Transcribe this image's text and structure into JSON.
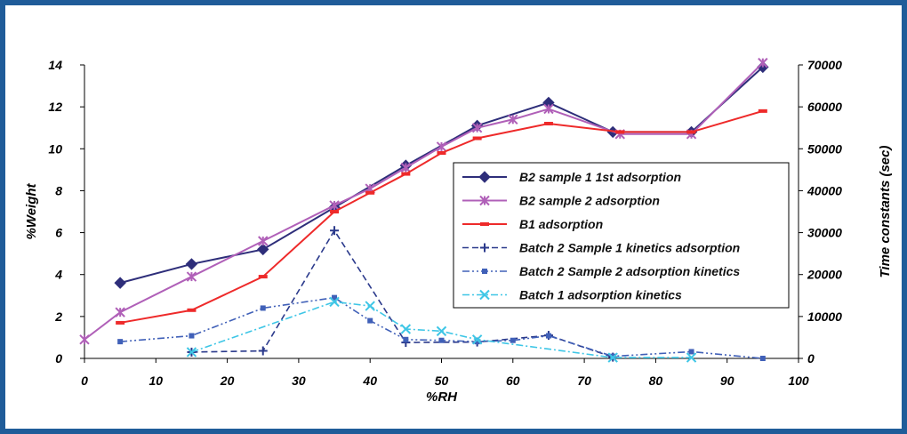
{
  "chart_data": {
    "type": "line",
    "xlabel": "%RH",
    "ylabel": "%Weight",
    "y2label": "Time constants (sec)",
    "xlim": [
      0,
      100
    ],
    "ylim": [
      0,
      14
    ],
    "y2lim": [
      0,
      70000
    ],
    "x_ticks": [
      "0",
      "10",
      "20",
      "30",
      "40",
      "50",
      "60",
      "70",
      "80",
      "90",
      "100"
    ],
    "y_ticks": [
      "0",
      "2",
      "4",
      "6",
      "8",
      "10",
      "12",
      "14"
    ],
    "y2_ticks": [
      "0",
      "10000",
      "20000",
      "30000",
      "40000",
      "50000",
      "60000",
      "70000"
    ],
    "grid": false,
    "legend_position": "center-right",
    "series": [
      {
        "name": "B2 sample 1 1st adsorption",
        "axis": "left",
        "color": "#2e2e7a",
        "dash": "solid",
        "marker": "diamond",
        "x": [
          5,
          15,
          25,
          35,
          45,
          55,
          65,
          74,
          85,
          95
        ],
        "y": [
          3.6,
          4.5,
          5.2,
          7.2,
          9.2,
          11.1,
          12.2,
          10.8,
          10.8,
          13.9
        ]
      },
      {
        "name": "B2 sample 2 adsorption",
        "axis": "left",
        "color": "#b060b8",
        "dash": "solid",
        "marker": "star",
        "x": [
          0,
          5,
          15,
          25,
          35,
          40,
          45,
          50,
          55,
          60,
          65,
          75,
          85,
          95
        ],
        "y": [
          0.9,
          2.2,
          3.9,
          5.6,
          7.3,
          8.1,
          9.1,
          10.1,
          11.0,
          11.4,
          11.9,
          10.7,
          10.7,
          14.1
        ]
      },
      {
        "name": "B1 adsorption",
        "axis": "left",
        "color": "#ee2a2a",
        "dash": "solid",
        "marker": "dash",
        "x": [
          5,
          15,
          25,
          35,
          40,
          45,
          50,
          55,
          65,
          75,
          85,
          95
        ],
        "y": [
          1.7,
          2.3,
          3.9,
          7.0,
          7.9,
          8.8,
          9.8,
          10.5,
          11.2,
          10.8,
          10.8,
          11.8
        ]
      },
      {
        "name": "Batch 2 Sample 1 kinetics adsorption",
        "axis": "right",
        "color": "#2b3a8c",
        "dash": "dashed",
        "marker": "plus",
        "x": [
          15,
          25,
          35,
          45,
          55,
          65,
          74
        ],
        "y": [
          1500,
          1800,
          30500,
          3800,
          3900,
          5500,
          300
        ]
      },
      {
        "name": "Batch 2 Sample 2 adsorption kinetics",
        "axis": "right",
        "color": "#4060b8",
        "dash": "dashdotdot",
        "marker": "square",
        "x": [
          5,
          15,
          25,
          35,
          40,
          45,
          50,
          55,
          60,
          65,
          74,
          85,
          95
        ],
        "y": [
          4000,
          5400,
          12000,
          14500,
          9000,
          4500,
          4300,
          4000,
          4300,
          5400,
          500,
          1600,
          0
        ]
      },
      {
        "name": "Batch 1 adsorption kinetics",
        "axis": "right",
        "color": "#3ec6e6",
        "dash": "dashdot",
        "marker": "x",
        "x": [
          15,
          35,
          40,
          45,
          50,
          55,
          74,
          85
        ],
        "y": [
          1500,
          13500,
          12500,
          7000,
          6500,
          4500,
          200,
          200
        ]
      }
    ]
  }
}
